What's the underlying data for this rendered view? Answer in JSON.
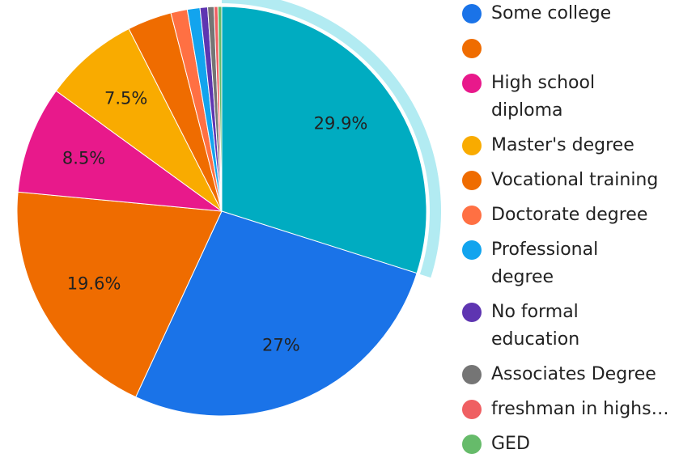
{
  "chart_data": {
    "type": "pie",
    "categories": [
      null,
      "Some college",
      null,
      "High school diploma",
      "Master's degree",
      "Vocational training",
      "Doctorate degree",
      "Professional degree",
      "No formal education",
      "Associates Degree",
      "freshman in highs…",
      "GED"
    ],
    "values": [
      29.9,
      27,
      19.6,
      8.5,
      7.5,
      3.5,
      1.3,
      1.0,
      0.6,
      0.5,
      0.3,
      0.3
    ],
    "value_labels": [
      "29.9%",
      "27%",
      "19.6%",
      "8.5%",
      "7.5%",
      null,
      null,
      null,
      null,
      null,
      null,
      null
    ],
    "colors": [
      "#00acc1",
      "#1a73e8",
      "#ef6c00",
      "#e8198b",
      "#f9ab00",
      "#ef6c00",
      "#ff7043",
      "#12a4ee",
      "#5e35b1",
      "#757575",
      "#ef5f62",
      "#66bb6a"
    ],
    "highlighted": 0
  }
}
